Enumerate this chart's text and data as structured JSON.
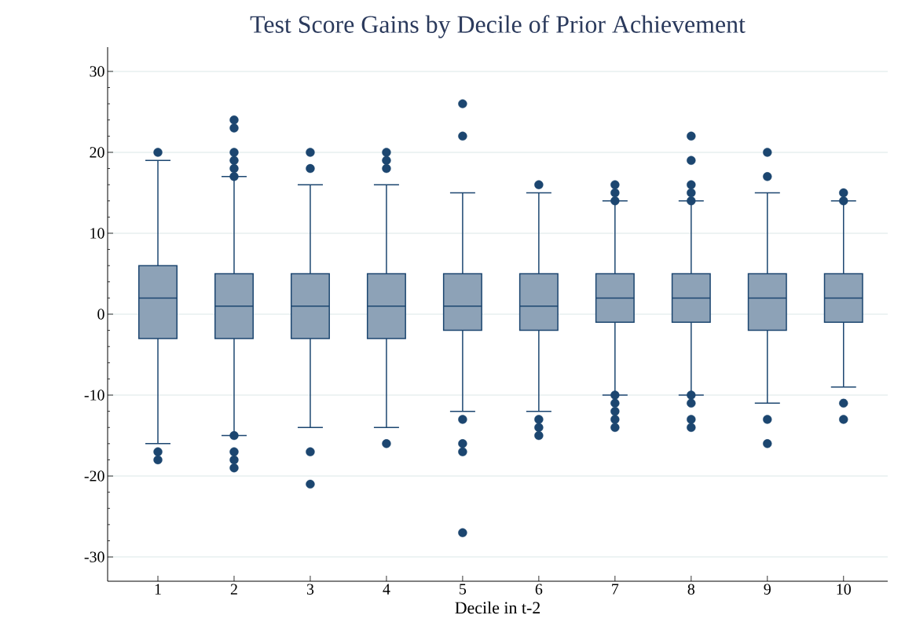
{
  "chart_data": {
    "type": "box",
    "title": "Test Score Gains by Decile of Prior Achievement",
    "xlabel": "Decile in t-2",
    "categories": [
      "1",
      "2",
      "3",
      "4",
      "5",
      "6",
      "7",
      "8",
      "9",
      "10"
    ],
    "series": [
      {
        "color": "#1c4670",
        "boxes": [
          {
            "low": -16,
            "q1": -3,
            "median": 2,
            "q3": 6,
            "high": 19,
            "outliers": [
              20,
              -17,
              -18
            ]
          },
          {
            "low": -15,
            "q1": -3,
            "median": 1,
            "q3": 5,
            "high": 17,
            "outliers": [
              24,
              23,
              20,
              19,
              18,
              17,
              -15,
              -17,
              -18,
              -19
            ]
          },
          {
            "low": -14,
            "q1": -3,
            "median": 1,
            "q3": 5,
            "high": 16,
            "outliers": [
              20,
              18,
              -17,
              -21
            ]
          },
          {
            "low": -14,
            "q1": -3,
            "median": 1,
            "q3": 5,
            "high": 16,
            "outliers": [
              20,
              19,
              18,
              -16
            ]
          },
          {
            "low": -12,
            "q1": -2,
            "median": 1,
            "q3": 5,
            "high": 15,
            "outliers": [
              26,
              22,
              -13,
              -16,
              -17,
              -27
            ]
          },
          {
            "low": -12,
            "q1": -2,
            "median": 1,
            "q3": 5,
            "high": 15,
            "outliers": [
              16,
              -13,
              -14,
              -15
            ]
          },
          {
            "low": -10,
            "q1": -1,
            "median": 2,
            "q3": 5,
            "high": 14,
            "outliers": [
              16,
              15,
              14,
              -10,
              -11,
              -12,
              -13,
              -14
            ]
          },
          {
            "low": -10,
            "q1": -1,
            "median": 2,
            "q3": 5,
            "high": 14,
            "outliers": [
              22,
              19,
              16,
              15,
              14,
              -10,
              -11,
              -13,
              -14
            ]
          },
          {
            "low": -11,
            "q1": -2,
            "median": 2,
            "q3": 5,
            "high": 15,
            "outliers": [
              20,
              17,
              -13,
              -16
            ]
          },
          {
            "low": -9,
            "q1": -1,
            "median": 2,
            "q3": 5,
            "high": 14,
            "outliers": [
              15,
              14,
              -11,
              -13
            ]
          }
        ]
      }
    ],
    "ylim": [
      -33,
      33
    ],
    "yticks": [
      -30,
      -20,
      -10,
      0,
      10,
      20,
      30
    ],
    "grid": "y",
    "marker": "circle"
  }
}
